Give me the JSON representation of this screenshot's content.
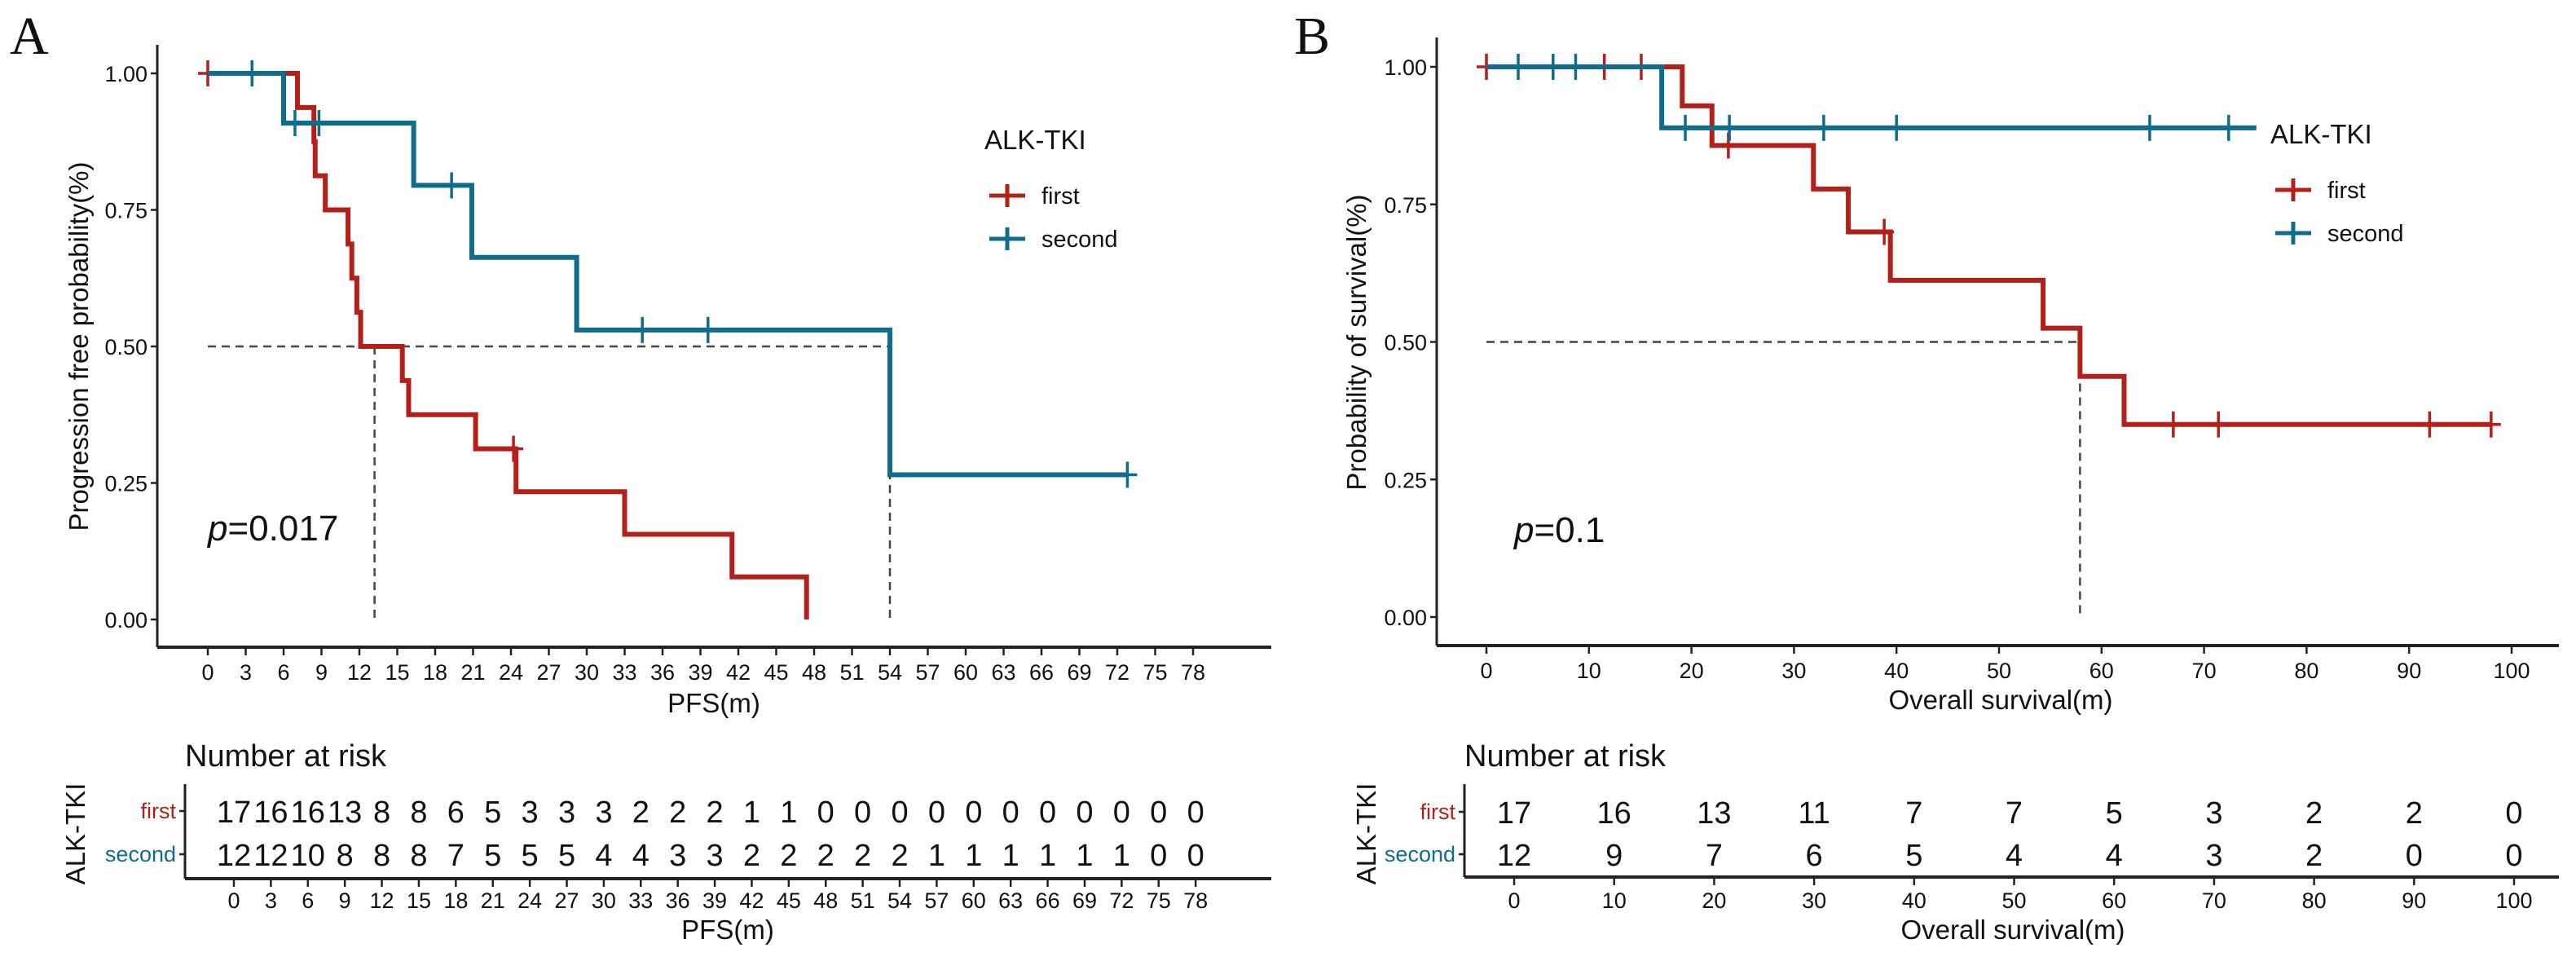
{
  "colors": {
    "first": "#b41f1a",
    "second": "#0f6d8c",
    "axis": "#222222",
    "median": "#444444"
  },
  "chart_data": [
    {
      "panel": "A",
      "type": "line",
      "subtype": "kaplan-meier",
      "xlabel": "PFS(m)",
      "ylabel": "Progression free probability(%)",
      "xlim": [
        0,
        78
      ],
      "ylim": [
        0,
        1
      ],
      "xticks": [
        0,
        3,
        6,
        9,
        12,
        15,
        18,
        21,
        24,
        27,
        30,
        33,
        36,
        39,
        42,
        45,
        48,
        51,
        54,
        57,
        60,
        63,
        66,
        69,
        72,
        75,
        78
      ],
      "yticks": [
        "0.00",
        "0.25",
        "0.50",
        "0.75",
        "1.00"
      ],
      "p_value_prefix": "p",
      "p_value_text": "=0.017",
      "legend": {
        "title": "ALK-TKI",
        "position": "top-right",
        "entries": [
          "first",
          "second"
        ]
      },
      "median_line": {
        "y": 0.5,
        "x": [
          13.2,
          54
        ]
      },
      "series": [
        {
          "name": "first",
          "steps": [
            [
              0,
              1
            ],
            [
              7.1,
              0.9375
            ],
            [
              8.4,
              0.875
            ],
            [
              8.5,
              0.8125
            ],
            [
              9.3,
              0.75
            ],
            [
              11.1,
              0.6875
            ],
            [
              11.4,
              0.625
            ],
            [
              11.8,
              0.5625
            ],
            [
              12.1,
              0.5
            ],
            [
              15.4,
              0.4375
            ],
            [
              15.9,
              0.375
            ],
            [
              21.2,
              0.3125
            ],
            [
              24.4,
              0.234
            ],
            [
              33,
              0.156
            ],
            [
              41.5,
              0.078
            ],
            [
              47.4,
              0
            ]
          ],
          "end": 47.4,
          "censored": [
            0,
            24.2
          ]
        },
        {
          "name": "second",
          "steps": [
            [
              0,
              1
            ],
            [
              6,
              0.909
            ],
            [
              16.3,
              0.795
            ],
            [
              20.9,
              0.663
            ],
            [
              29.2,
              0.53
            ],
            [
              54,
              0.265
            ]
          ],
          "end": 72.8,
          "censored": [
            3.5,
            6.9,
            8.8,
            19.3,
            34.4,
            39.6,
            72.8
          ]
        }
      ],
      "risk_table": {
        "title": "Number at risk",
        "strata_title": "ALK-TKI",
        "xlabel": "PFS(m)",
        "times": [
          0,
          3,
          6,
          9,
          12,
          15,
          18,
          21,
          24,
          27,
          30,
          33,
          36,
          39,
          42,
          45,
          48,
          51,
          54,
          57,
          60,
          63,
          66,
          69,
          72,
          75,
          78
        ],
        "rows": [
          {
            "name": "first",
            "values": [
              17,
              16,
              16,
              13,
              8,
              8,
              6,
              5,
              3,
              3,
              3,
              2,
              2,
              2,
              1,
              1,
              0,
              0,
              0,
              0,
              0,
              0,
              0,
              0,
              0,
              0,
              0
            ]
          },
          {
            "name": "second",
            "values": [
              12,
              12,
              10,
              8,
              8,
              8,
              7,
              5,
              5,
              5,
              4,
              4,
              3,
              3,
              2,
              2,
              2,
              2,
              2,
              1,
              1,
              1,
              1,
              1,
              1,
              0,
              0
            ]
          }
        ]
      }
    },
    {
      "panel": "B",
      "type": "line",
      "subtype": "kaplan-meier",
      "xlabel": "Overall survival(m)",
      "ylabel": "Probability of survival(%)",
      "xlim": [
        0,
        100
      ],
      "ylim": [
        0,
        1
      ],
      "xticks": [
        0,
        10,
        20,
        30,
        40,
        50,
        60,
        70,
        80,
        90,
        100
      ],
      "yticks": [
        "0.00",
        "0.25",
        "0.50",
        "0.75",
        "1.00"
      ],
      "p_value_prefix": "p",
      "p_value_text": "=0.1",
      "legend": {
        "title": "ALK-TKI",
        "position": "top-right",
        "entries": [
          "first",
          "second"
        ]
      },
      "median_line": {
        "y": 0.5,
        "x": [
          57.9
        ]
      },
      "series": [
        {
          "name": "first",
          "steps": [
            [
              0,
              1
            ],
            [
              19.1,
              0.929
            ],
            [
              22,
              0.857
            ],
            [
              31.9,
              0.778
            ],
            [
              35.3,
              0.7
            ],
            [
              39.4,
              0.612
            ],
            [
              54.3,
              0.525
            ],
            [
              57.9,
              0.4375
            ],
            [
              62.2,
              0.35
            ]
          ],
          "end": 98,
          "censored": [
            0,
            11.5,
            15.1,
            23.6,
            38.8,
            67,
            71.4,
            92,
            98
          ]
        },
        {
          "name": "second",
          "steps": [
            [
              0,
              1
            ],
            [
              17.1,
              0.889
            ]
          ],
          "end": 75.1,
          "censored": [
            3.1,
            6.5,
            8.7,
            19.4,
            23.7,
            32.9,
            40,
            64.7,
            72.4
          ]
        }
      ],
      "risk_table": {
        "title": "Number at risk",
        "strata_title": "ALK-TKI",
        "xlabel": "Overall survival(m)",
        "times": [
          0,
          10,
          20,
          30,
          40,
          50,
          60,
          70,
          80,
          90,
          100
        ],
        "rows": [
          {
            "name": "first",
            "values": [
              17,
              16,
              13,
              11,
              7,
              7,
              5,
              3,
              2,
              2,
              0
            ]
          },
          {
            "name": "second",
            "values": [
              12,
              9,
              7,
              6,
              5,
              4,
              4,
              3,
              2,
              0,
              0
            ]
          }
        ]
      }
    }
  ]
}
